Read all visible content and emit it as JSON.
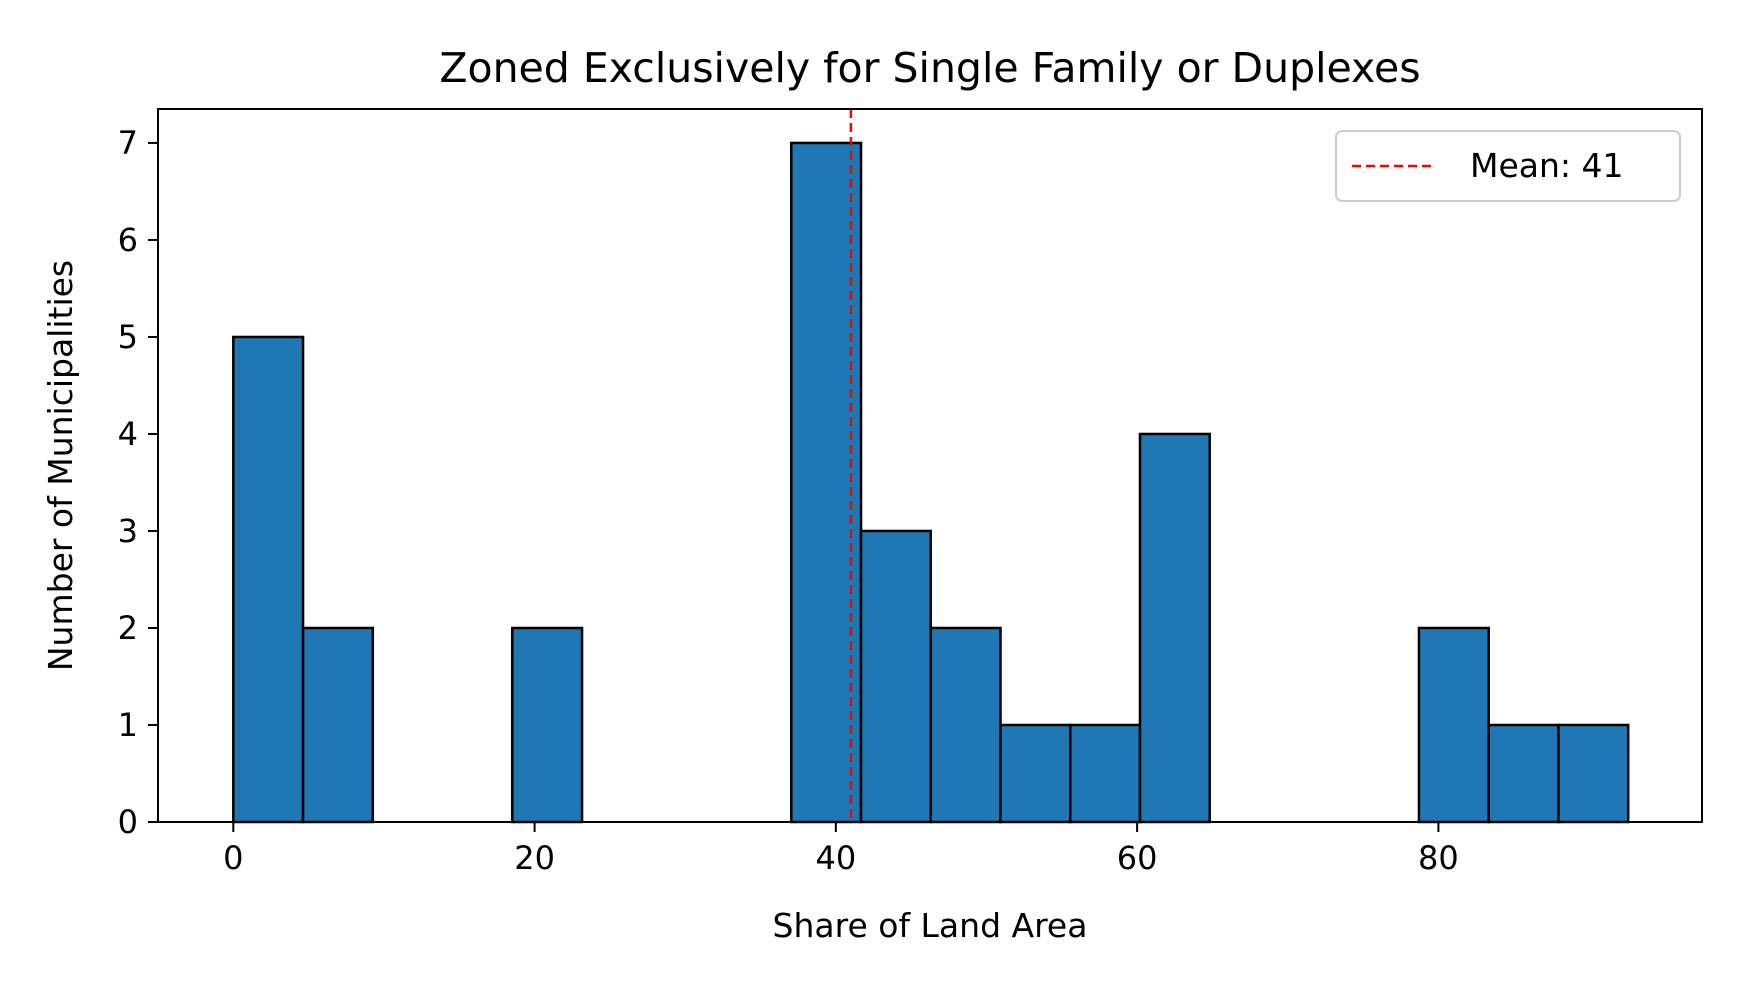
{
  "chart_data": {
    "type": "bar",
    "title": "Zoned Exclusively for Single Family or Duplexes",
    "xlabel": "Share of Land Area",
    "ylabel": "Number of Municipalities",
    "xlim": [
      -5,
      97.5
    ],
    "ylim": [
      0,
      7.35
    ],
    "xticks": [
      0,
      20,
      40,
      60,
      80
    ],
    "yticks": [
      0,
      1,
      2,
      3,
      4,
      5,
      6,
      7
    ],
    "grid": false,
    "bin_edges": [
      0,
      4.63,
      9.26,
      13.89,
      18.52,
      23.15,
      27.78,
      32.41,
      37.04,
      41.67,
      46.3,
      50.93,
      55.56,
      60.19,
      64.82,
      69.45,
      74.08,
      78.71,
      83.34,
      87.97,
      92.6
    ],
    "counts": [
      5,
      2,
      0,
      0,
      2,
      0,
      0,
      0,
      7,
      3,
      2,
      1,
      1,
      4,
      0,
      0,
      0,
      2,
      1,
      1
    ],
    "bar_color": "#1f77b4",
    "edge_color": "#000000",
    "mean_line": {
      "value": 41,
      "label": "Mean: 41",
      "color": "#ff0000",
      "style": "dashed"
    },
    "legend_position": "top-right"
  }
}
